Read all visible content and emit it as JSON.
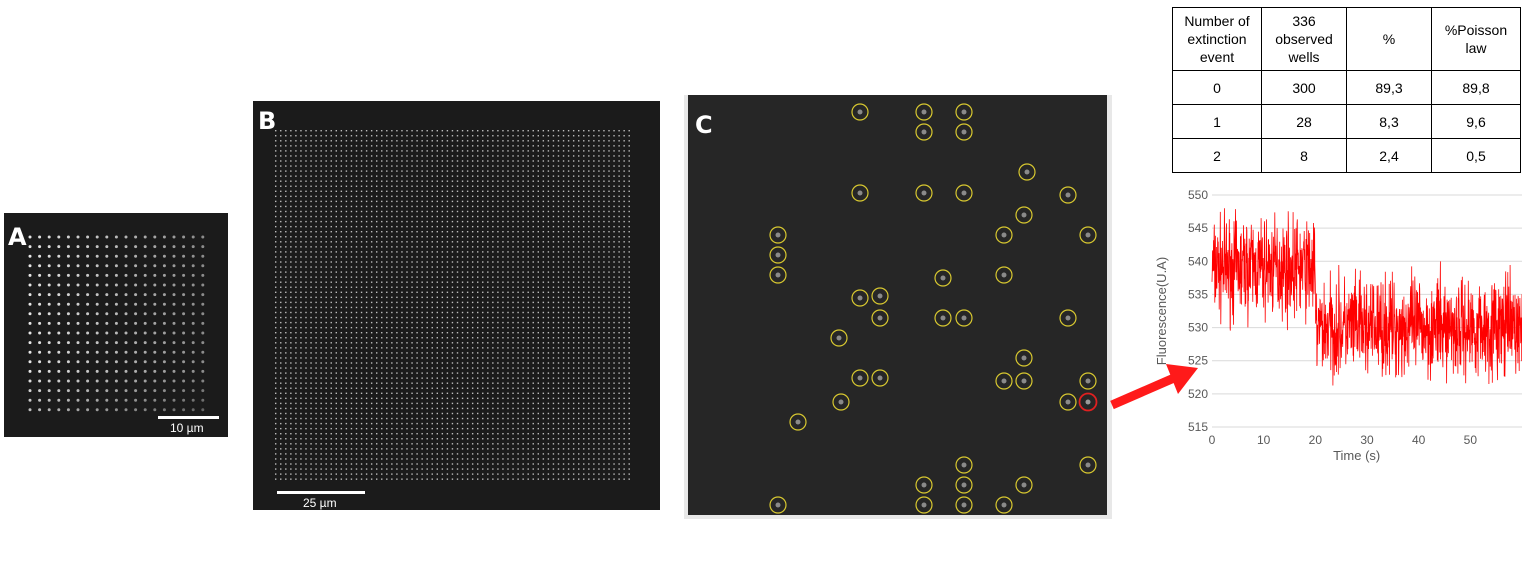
{
  "panels": {
    "a": {
      "letter": "A",
      "scalebar_label": "10 µm"
    },
    "b": {
      "letter": "B",
      "scalebar_label": "25 µm"
    },
    "c": {
      "letter": "C"
    }
  },
  "table": {
    "headers": [
      "Number of extinction event",
      "336 observed wells",
      "%",
      "%Poisson law"
    ],
    "header_lines": [
      [
        "Number of",
        "extinction",
        "event"
      ],
      [
        "336",
        "observed",
        "wells"
      ],
      [
        "%"
      ],
      [
        "%Poisson",
        "law"
      ]
    ],
    "rows": [
      [
        "0",
        "300",
        "89,3",
        "89,8"
      ],
      [
        "1",
        "28",
        "8,3",
        "9,6"
      ],
      [
        "2",
        "8",
        "2,4",
        "0,5"
      ]
    ]
  },
  "chart_data": {
    "type": "line",
    "title": "",
    "xlabel": "Time (s)",
    "ylabel": "Fluorescence(U.A)",
    "xlim": [
      0,
      60
    ],
    "ylim": [
      515,
      550
    ],
    "x_ticks": [
      0,
      10,
      20,
      30,
      40,
      50
    ],
    "y_ticks": [
      515,
      520,
      525,
      530,
      535,
      540,
      545,
      550
    ],
    "grid": true,
    "series": [
      {
        "color": "#ff0000",
        "segments": [
          {
            "x_range": [
              0,
              20
            ],
            "mean": 539,
            "noise_range": [
              529,
              548
            ]
          },
          {
            "x_range": [
              20,
              60
            ],
            "mean": 530,
            "noise_range": [
              521,
              540
            ]
          }
        ]
      }
    ]
  },
  "colors": {
    "trace": "#ff0000",
    "circle": "#d8c830",
    "circle_selected": "#e02020",
    "arrow": "#ff1a1a"
  }
}
